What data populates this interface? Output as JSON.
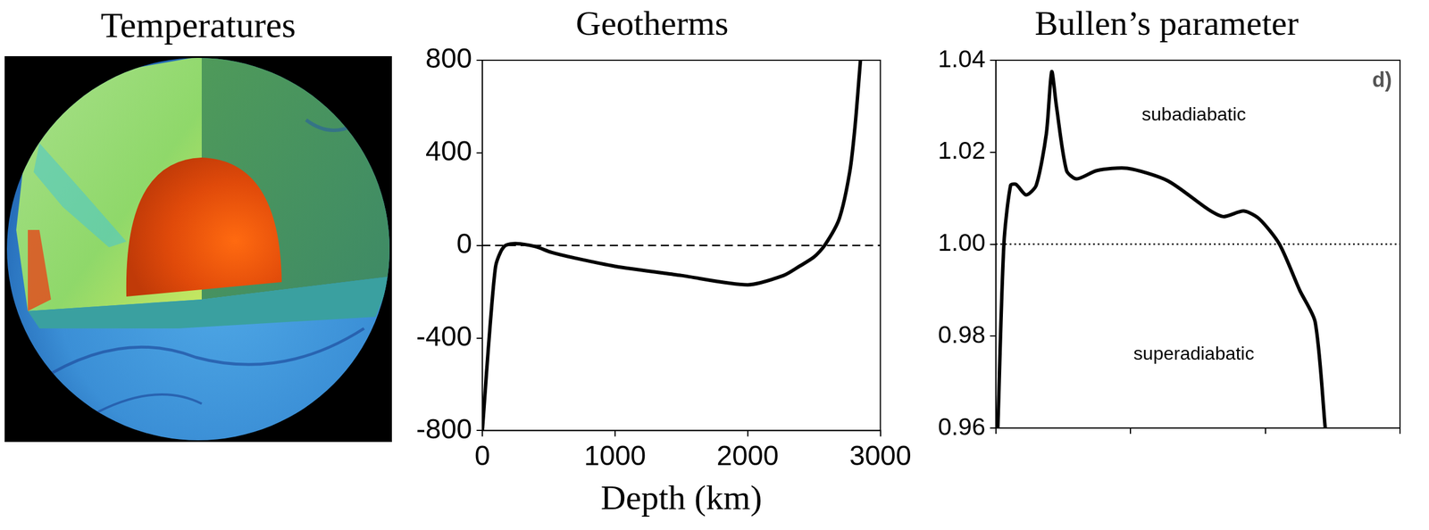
{
  "image_panel": {
    "title": "Temperatures"
  },
  "chart_data": [
    {
      "type": "line",
      "title": "Geotherms",
      "x_label": "Depth (km)",
      "xlim": [
        0,
        3000
      ],
      "xticks": [
        0,
        1000,
        2000,
        3000
      ],
      "ylim": [
        -800,
        800
      ],
      "yticks": [
        -800,
        -400,
        0,
        400,
        800
      ],
      "grid": false,
      "series": [
        {
          "color": "#000000",
          "line_style": "solid",
          "x": [
            0,
            30,
            60,
            100,
            140,
            175,
            250,
            400,
            520,
            700,
            1000,
            1500,
            2000,
            2270,
            2390,
            2500,
            2580,
            2690,
            2770,
            2810,
            2850
          ],
          "values": [
            -800,
            -560,
            -335,
            -90,
            -25,
            0,
            8,
            -5,
            -30,
            -55,
            -90,
            -130,
            -170,
            -130,
            -90,
            -50,
            0,
            115,
            320,
            520,
            800
          ]
        },
        {
          "color": "#000000",
          "line_style": "dashed",
          "x": [
            0,
            3000
          ],
          "values": [
            0,
            0
          ]
        }
      ]
    },
    {
      "type": "line",
      "title": "Bullen’s parameter",
      "panel_label": "d)",
      "xlim": [
        0,
        3000
      ],
      "xticks": [
        0,
        1000,
        2000,
        3000
      ],
      "tick_labels": "y",
      "ylim": [
        0.96,
        1.04
      ],
      "yticks": [
        0.96,
        0.98,
        {
          "value": 1,
          "label": "1.00"
        },
        1.02,
        1.04
      ],
      "grid": false,
      "annotations": [
        {
          "text": "subadiabatic",
          "x": 1470,
          "y": 1.028
        },
        {
          "text": "superadiabatic",
          "x": 1470,
          "y": 0.976
        }
      ],
      "series": [
        {
          "color": "#000000",
          "line_style": "solid",
          "x": [
            15,
            60,
            110,
            150,
            225,
            300,
            375,
            415,
            450,
            525,
            600,
            750,
            975,
            1275,
            1575,
            1690,
            1840,
            1955,
            2105,
            2255,
            2370,
            2445
          ],
          "values": [
            0.96,
            1.0,
            1.0128,
            1.013,
            1.0107,
            1.0128,
            1.024,
            1.0375,
            1.03,
            1.016,
            1.0142,
            1.016,
            1.0165,
            1.0138,
            1.0076,
            1.006,
            1.0072,
            1.0055,
            1.0,
            0.99,
            0.9831,
            0.96
          ]
        },
        {
          "color": "#000000",
          "line_style": "dotted",
          "x": [
            0,
            3000
          ],
          "values": [
            1,
            1
          ]
        }
      ]
    }
  ]
}
